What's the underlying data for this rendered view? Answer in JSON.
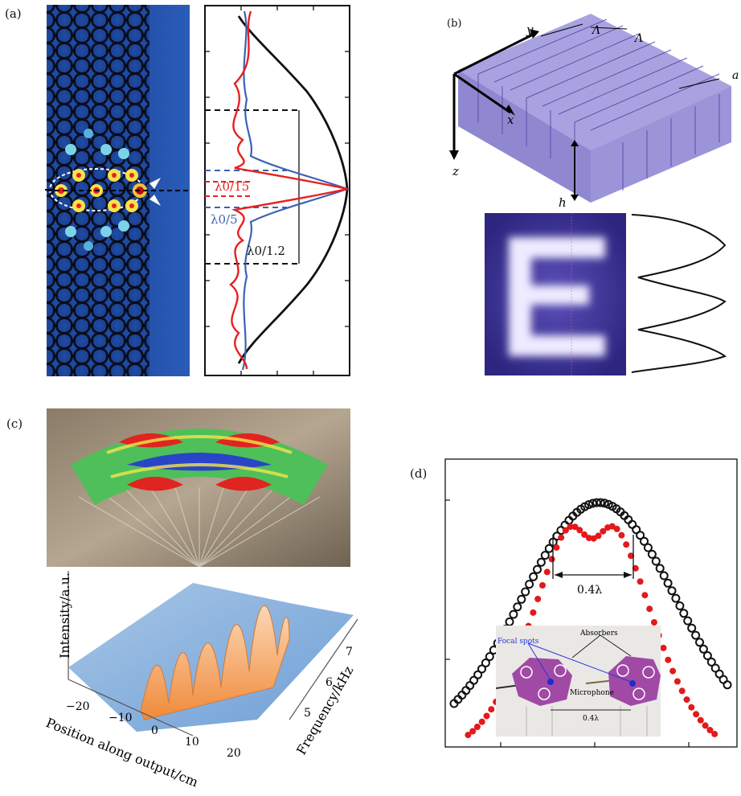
{
  "figure": {
    "panel_a": {
      "label": "(a)",
      "annotations": {
        "red_width": "λ0/15",
        "blue_width": "λ0/5",
        "black_width": "λ0/1.2"
      },
      "colors": {
        "black_curve": "#111111",
        "red_curve": "#e8201f",
        "blue_curve": "#3a62b3",
        "map_bg": "#1a3a8f"
      }
    },
    "panel_b": {
      "label": "(b)",
      "axes": {
        "x": "x",
        "y": "y",
        "z": "z"
      },
      "dims": {
        "period1": "Λ",
        "period2": "Λ",
        "width": "a",
        "height": "h"
      },
      "image_letter": "E",
      "colors": {
        "block": "#7a6fc4",
        "image_bg": "#3a2f8f"
      }
    },
    "panel_c": {
      "label": "(c)",
      "z_label": "Intensity/a.u.",
      "x_label": "Position along output/cm",
      "y_label": "Frequency/kHz",
      "x_ticks": [
        "−20",
        "−10",
        "0",
        "10",
        "20"
      ],
      "y_ticks": [
        "5",
        "6",
        "7"
      ]
    },
    "panel_d": {
      "label": "(d)",
      "annotation": "0.4λ",
      "inset": {
        "absorbers": "Absorbers",
        "focal_spots": "Focal spots",
        "microphone": "Microphone",
        "spacing": "0.4λ"
      },
      "colors": {
        "open_circles": "#111111",
        "red_dots": "#e3191b"
      }
    }
  }
}
